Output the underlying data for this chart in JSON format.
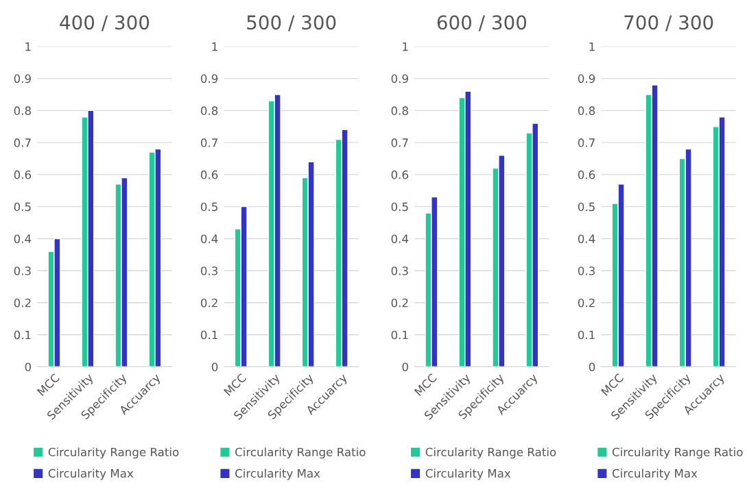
{
  "chart_data": [
    {
      "type": "bar",
      "title": "400 / 300",
      "categories": [
        "MCC",
        "Sensitivity",
        "Specificity",
        "Accuarcy"
      ],
      "series": [
        {
          "name": "Circularity Range Ratio",
          "color": "#20c997",
          "values": [
            0.36,
            0.78,
            0.57,
            0.67
          ]
        },
        {
          "name": "Circularity Max",
          "color": "#3333c4",
          "values": [
            0.4,
            0.8,
            0.59,
            0.68
          ]
        }
      ],
      "ylim": [
        0,
        1
      ],
      "yticks": [
        0,
        0.1,
        0.2,
        0.3,
        0.4,
        0.5,
        0.6,
        0.7,
        0.8,
        0.9,
        1
      ],
      "grid": "y",
      "legend": "bottom"
    },
    {
      "type": "bar",
      "title": "500 / 300",
      "categories": [
        "MCC",
        "Sensitivity",
        "Specificity",
        "Accuarcy"
      ],
      "series": [
        {
          "name": "Circularity Range Ratio",
          "color": "#20c997",
          "values": [
            0.43,
            0.83,
            0.59,
            0.71
          ]
        },
        {
          "name": "Circularity Max",
          "color": "#3333c4",
          "values": [
            0.5,
            0.85,
            0.64,
            0.74
          ]
        }
      ],
      "ylim": [
        0,
        1
      ],
      "yticks": [
        0,
        0.1,
        0.2,
        0.3,
        0.4,
        0.5,
        0.6,
        0.7,
        0.8,
        0.9,
        1
      ],
      "grid": "y",
      "legend": "bottom"
    },
    {
      "type": "bar",
      "title": "600 / 300",
      "categories": [
        "MCC",
        "Sensitivity",
        "Specificity",
        "Accuarcy"
      ],
      "series": [
        {
          "name": "Circularity Range Ratio",
          "color": "#20c997",
          "values": [
            0.48,
            0.84,
            0.62,
            0.73
          ]
        },
        {
          "name": "Circularity Max",
          "color": "#3333c4",
          "values": [
            0.53,
            0.86,
            0.66,
            0.76
          ]
        }
      ],
      "ylim": [
        0,
        1
      ],
      "yticks": [
        0,
        0.1,
        0.2,
        0.3,
        0.4,
        0.5,
        0.6,
        0.7,
        0.8,
        0.9,
        1
      ],
      "grid": "y",
      "legend": "bottom"
    },
    {
      "type": "bar",
      "title": "700 / 300",
      "categories": [
        "MCC",
        "Sensitivity",
        "Specificity",
        "Accuarcy"
      ],
      "series": [
        {
          "name": "Circularity Range Ratio",
          "color": "#20c997",
          "values": [
            0.51,
            0.85,
            0.65,
            0.75
          ]
        },
        {
          "name": "Circularity Max",
          "color": "#3333c4",
          "values": [
            0.57,
            0.88,
            0.68,
            0.78
          ]
        }
      ],
      "ylim": [
        0,
        1
      ],
      "yticks": [
        0,
        0.1,
        0.2,
        0.3,
        0.4,
        0.5,
        0.6,
        0.7,
        0.8,
        0.9,
        1
      ],
      "grid": "y",
      "legend": "bottom"
    }
  ]
}
